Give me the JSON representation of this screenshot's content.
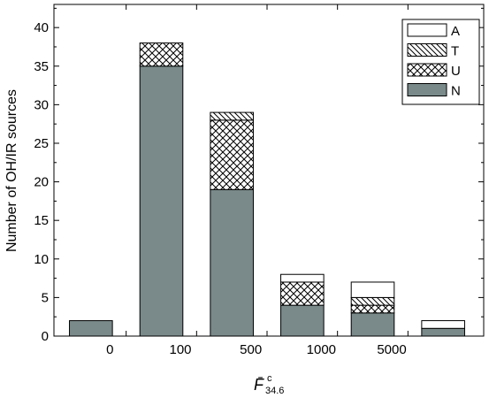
{
  "chart_data": {
    "type": "bar",
    "stacked": true,
    "categories": [
      "",
      "0",
      "100",
      "500",
      "1000",
      "5000"
    ],
    "series": [
      {
        "name": "N",
        "values": [
          2,
          35,
          19,
          4,
          3,
          1
        ],
        "color": "#7a8a8a"
      },
      {
        "name": "U",
        "values": [
          0,
          3,
          9,
          3,
          1,
          0
        ],
        "pattern": "crosshatch"
      },
      {
        "name": "T",
        "values": [
          0,
          0,
          1,
          0,
          1,
          0
        ],
        "pattern": "diagonal"
      },
      {
        "name": "A",
        "values": [
          0,
          0,
          0,
          1,
          2,
          1
        ],
        "color": "#ffffff"
      }
    ],
    "xlabel_main": "F̄",
    "xlabel_sup": "c",
    "xlabel_sub": "34.6",
    "ylabel": "Number of OH/IR sources",
    "ylim": [
      0,
      43
    ],
    "yticks": [
      0,
      5,
      10,
      15,
      20,
      25,
      30,
      35,
      40
    ],
    "legend": {
      "placement": "top-right",
      "order": [
        "A",
        "T",
        "U",
        "N"
      ]
    },
    "grid": false
  }
}
